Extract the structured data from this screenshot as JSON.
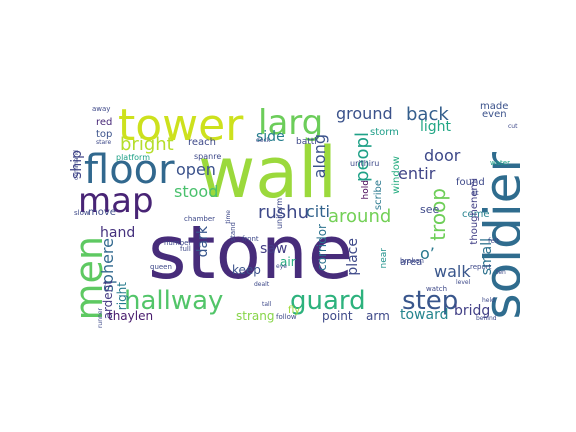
{
  "words": [
    {
      "text": "stone",
      "color": "#472c7a"
    },
    {
      "text": "wall",
      "color": "#9bd93c"
    },
    {
      "text": "soldier",
      "color": "#2f6c8e"
    },
    {
      "text": "tower",
      "color": "#cde11d"
    },
    {
      "text": "floor",
      "color": "#31688e"
    },
    {
      "text": "map",
      "color": "#482475"
    },
    {
      "text": "men",
      "color": "#5ec962"
    },
    {
      "text": "hallway",
      "color": "#52c569"
    },
    {
      "text": "guard",
      "color": "#2db27d"
    },
    {
      "text": "step",
      "color": "#39568c"
    },
    {
      "text": "larg",
      "color": "#6ccd5a"
    },
    {
      "text": "ground",
      "color": "#3b528b"
    },
    {
      "text": "back",
      "color": "#355f8d"
    },
    {
      "text": "light",
      "color": "#21a685"
    },
    {
      "text": "bright",
      "color": "#b5de2b"
    },
    {
      "text": "side",
      "color": "#277f8e"
    },
    {
      "text": "door",
      "color": "#3e4989"
    },
    {
      "text": "open",
      "color": "#3b528b"
    },
    {
      "text": "stood",
      "color": "#4ac16d"
    },
    {
      "text": "rushu",
      "color": "#3e4989"
    },
    {
      "text": "around",
      "color": "#73d056"
    },
    {
      "text": "citi",
      "color": "#33638d"
    },
    {
      "text": "along",
      "color": "#3b528b"
    },
    {
      "text": "peopl",
      "color": "#1fa187"
    },
    {
      "text": "troop",
      "color": "#6ece58"
    },
    {
      "text": "entir",
      "color": "#404588"
    },
    {
      "text": "walk",
      "color": "#39568c"
    },
    {
      "text": "bridg",
      "color": "#424086"
    },
    {
      "text": "toward",
      "color": "#25858e"
    },
    {
      "text": "hand",
      "color": "#46327e"
    },
    {
      "text": "sphere",
      "color": "#31688e"
    },
    {
      "text": "ship",
      "color": "#414487"
    },
    {
      "text": "saw",
      "color": "#433e85"
    },
    {
      "text": "dark",
      "color": "#39568c"
    },
    {
      "text": "small",
      "color": "#2c728e"
    },
    {
      "text": "place",
      "color": "#3e4989"
    },
    {
      "text": "o’",
      "color": "#2a788e"
    },
    {
      "text": "corridor",
      "color": "#2c728e"
    },
    {
      "text": "keep",
      "color": "#3b528b"
    },
    {
      "text": "air",
      "color": "#27ad81"
    },
    {
      "text": "ardent",
      "color": "#443a83"
    },
    {
      "text": "right",
      "color": "#287c8e"
    },
    {
      "text": "thaylen",
      "color": "#481b6d"
    },
    {
      "text": "strang",
      "color": "#87d549"
    },
    {
      "text": "point",
      "color": "#3e4989"
    },
    {
      "text": "arm",
      "color": "#3e4989"
    },
    {
      "text": "fly",
      "color": "#9fda3a"
    },
    {
      "text": "near",
      "color": "#20928c"
    },
    {
      "text": "area",
      "color": "#3e4989"
    },
    {
      "text": "see",
      "color": "#3e4989"
    },
    {
      "text": "come",
      "color": "#26828e"
    },
    {
      "text": "found",
      "color": "#3e4989"
    },
    {
      "text": "thoughenemi",
      "color": "#424086"
    },
    {
      "text": "window",
      "color": "#27ad81"
    },
    {
      "text": "scribe",
      "color": "#2a788e"
    },
    {
      "text": "hold",
      "color": "#440154"
    },
    {
      "text": "storm",
      "color": "#1f9e89"
    },
    {
      "text": "made",
      "color": "#3b528b"
    },
    {
      "text": "even",
      "color": "#3b528b"
    },
    {
      "text": "red",
      "color": "#482878"
    },
    {
      "text": "top",
      "color": "#3b528b"
    },
    {
      "text": "move",
      "color": "#3e4989"
    },
    {
      "text": "reach",
      "color": "#3e4989"
    },
    {
      "text": "battl",
      "color": "#3e4989"
    },
    {
      "text": "urithiru",
      "color": "#3e4989"
    },
    {
      "text": "uniform",
      "color": "#3e4989"
    },
    {
      "text": "front",
      "color": "#3e4989"
    },
    {
      "text": "chamber",
      "color": "#3e4989"
    },
    {
      "text": "full",
      "color": "#3e4989"
    },
    {
      "text": "platform",
      "color": "#1fa187"
    },
    {
      "text": "spanre",
      "color": "#3e4989"
    },
    {
      "text": "stare",
      "color": "#3e4989"
    },
    {
      "text": "command",
      "color": "#3e4989"
    },
    {
      "text": "away",
      "color": "#3e4989"
    },
    {
      "text": "cut",
      "color": "#3e4989"
    },
    {
      "text": "water",
      "color": "#1fa187"
    },
    {
      "text": "felt",
      "color": "#3e4989"
    },
    {
      "text": "ten",
      "color": "#3e4989"
    },
    {
      "text": "level",
      "color": "#3e4989"
    },
    {
      "text": "behind",
      "color": "#3e4989"
    },
    {
      "text": "follow",
      "color": "#3e4989"
    },
    {
      "text": "tall",
      "color": "#3e4989"
    },
    {
      "text": "queen",
      "color": "#3e4989"
    },
    {
      "text": "number",
      "color": "#3e4989"
    },
    {
      "text": "eye",
      "color": "#3e4989"
    },
    {
      "text": "slow",
      "color": "#3e4989"
    },
    {
      "text": "runner",
      "color": "#3e4989"
    },
    {
      "text": "broken",
      "color": "#3e4989"
    },
    {
      "text": "watch",
      "color": "#3e4989"
    },
    {
      "text": "dealt",
      "color": "#3e4989"
    },
    {
      "text": "report",
      "color": "#3e4989"
    },
    {
      "text": "stand",
      "color": "#3e4989"
    },
    {
      "text": "time",
      "color": "#3e4989"
    },
    {
      "text": "deck",
      "color": "#3e4989"
    },
    {
      "text": "lit",
      "color": "#3e4989"
    },
    {
      "text": "held",
      "color": "#3e4989"
    }
  ]
}
